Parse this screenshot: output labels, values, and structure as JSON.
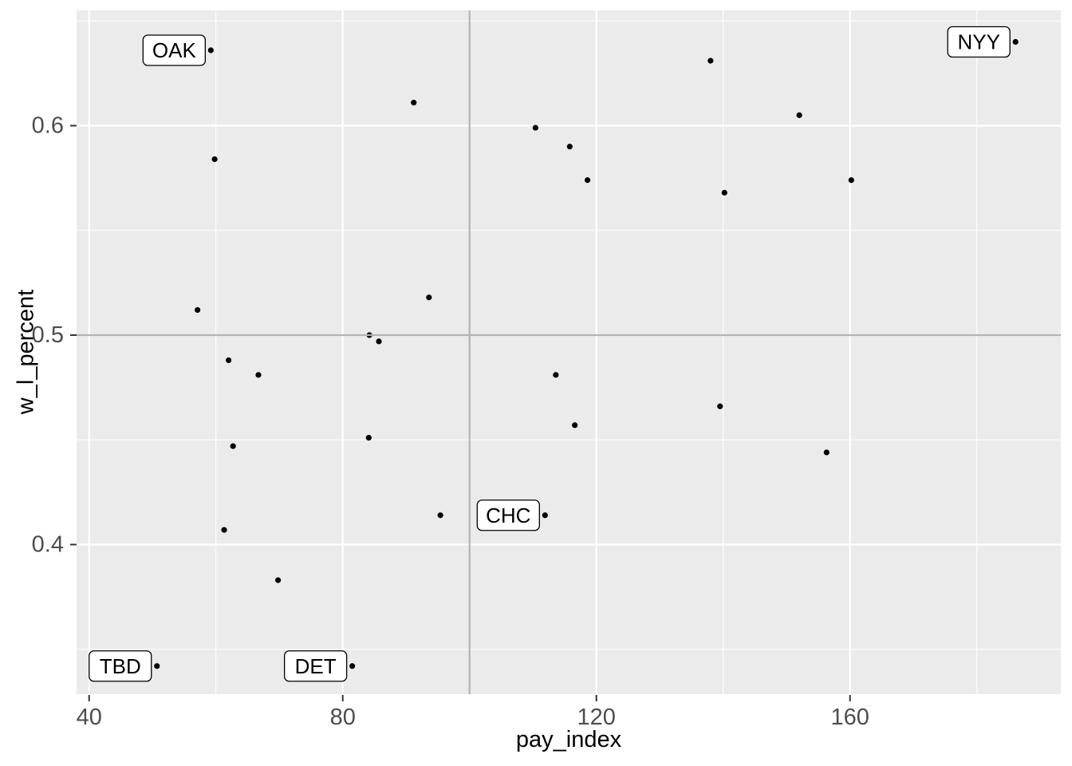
{
  "figure": {
    "xlabel": "pay_index",
    "ylabel": "w_l_percent"
  },
  "chart_data": {
    "type": "scatter",
    "title": "",
    "xlabel": "pay_index",
    "ylabel": "w_l_percent",
    "legend": "none",
    "grid": "major and minor white gridlines on grey panel",
    "xlim": [
      38.0,
      193.3
    ],
    "ylim": [
      0.327,
      0.655
    ],
    "x_ticks": {
      "major": [
        40,
        80,
        120,
        160
      ],
      "minor": [
        60,
        100,
        140,
        180
      ]
    },
    "y_ticks": {
      "major": [
        0.4,
        0.5,
        0.6
      ],
      "minor": [
        0.35,
        0.45,
        0.55,
        0.65
      ]
    },
    "x_tick_labels": [
      "40",
      "80",
      "120",
      "160"
    ],
    "y_tick_labels": [
      "0.4",
      "0.5",
      "0.6"
    ],
    "reference_lines": {
      "vertical_x": 100,
      "horizontal_y": 0.5,
      "color": "#B3B3B3"
    },
    "style": {
      "panel_bg": "#EBEBEB",
      "grid_color": "#FFFFFF",
      "point_color": "#000000",
      "tick_label_color": "#4D4D4D",
      "tick_mark_color": "#333333",
      "axis_title_color": "#000000",
      "label_box_bg": "#FFFFFF",
      "label_box_border": "#000000",
      "label_text_color": "#000000"
    },
    "points": [
      {
        "pay_index": 50.7,
        "w_l_percent": 0.342,
        "label": "TBD"
      },
      {
        "pay_index": 57.1,
        "w_l_percent": 0.512
      },
      {
        "pay_index": 59.2,
        "w_l_percent": 0.636,
        "label": "OAK"
      },
      {
        "pay_index": 59.8,
        "w_l_percent": 0.584
      },
      {
        "pay_index": 61.3,
        "w_l_percent": 0.407
      },
      {
        "pay_index": 62.0,
        "w_l_percent": 0.488
      },
      {
        "pay_index": 62.7,
        "w_l_percent": 0.447
      },
      {
        "pay_index": 66.7,
        "w_l_percent": 0.481
      },
      {
        "pay_index": 69.8,
        "w_l_percent": 0.383
      },
      {
        "pay_index": 81.5,
        "w_l_percent": 0.342,
        "label": "DET"
      },
      {
        "pay_index": 84.1,
        "w_l_percent": 0.451
      },
      {
        "pay_index": 84.2,
        "w_l_percent": 0.5
      },
      {
        "pay_index": 85.7,
        "w_l_percent": 0.497
      },
      {
        "pay_index": 91.2,
        "w_l_percent": 0.611
      },
      {
        "pay_index": 93.6,
        "w_l_percent": 0.518
      },
      {
        "pay_index": 95.4,
        "w_l_percent": 0.414
      },
      {
        "pay_index": 110.4,
        "w_l_percent": 0.599
      },
      {
        "pay_index": 111.9,
        "w_l_percent": 0.414,
        "label": "CHC"
      },
      {
        "pay_index": 113.6,
        "w_l_percent": 0.481
      },
      {
        "pay_index": 115.8,
        "w_l_percent": 0.59
      },
      {
        "pay_index": 116.6,
        "w_l_percent": 0.457
      },
      {
        "pay_index": 118.6,
        "w_l_percent": 0.574
      },
      {
        "pay_index": 138.0,
        "w_l_percent": 0.631
      },
      {
        "pay_index": 139.5,
        "w_l_percent": 0.466
      },
      {
        "pay_index": 140.2,
        "w_l_percent": 0.568
      },
      {
        "pay_index": 152.0,
        "w_l_percent": 0.605
      },
      {
        "pay_index": 156.3,
        "w_l_percent": 0.444
      },
      {
        "pay_index": 160.2,
        "w_l_percent": 0.574
      },
      {
        "pay_index": 186.1,
        "w_l_percent": 0.64,
        "label": "NYY"
      }
    ]
  }
}
